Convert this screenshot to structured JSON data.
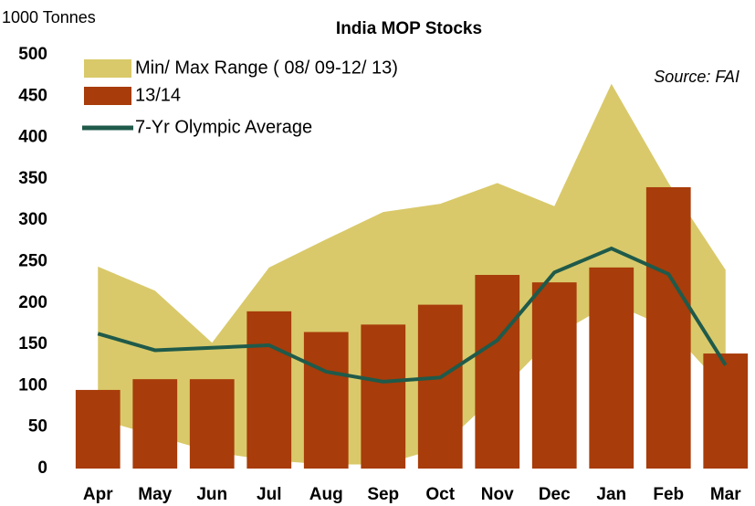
{
  "chart_data": {
    "type": "combo",
    "title": "India  MOP Stocks",
    "y_axis_label": "1000 Tonnes",
    "annotation": "Source: FAI",
    "categories": [
      "Apr",
      "May",
      "Jun",
      "Jul",
      "Aug",
      "Sep",
      "Oct",
      "Nov",
      "Dec",
      "Jan",
      "Feb",
      "Mar"
    ],
    "ylim": [
      0,
      500
    ],
    "yticks": [
      0,
      50,
      100,
      150,
      200,
      250,
      300,
      350,
      400,
      450,
      500
    ],
    "series": [
      {
        "name": "Min/ Max Range ( 08/ 09-12/ 13)",
        "type": "area_range",
        "color": "#d9c96a",
        "low": [
          60,
          40,
          20,
          10,
          5,
          5,
          25,
          90,
          160,
          200,
          170,
          95
        ],
        "high": [
          244,
          215,
          152,
          243,
          277,
          310,
          320,
          345,
          317,
          465,
          345,
          240
        ]
      },
      {
        "name": "13/14",
        "type": "bar",
        "color": "#a83c0a",
        "values": [
          95,
          108,
          108,
          190,
          165,
          174,
          198,
          234,
          225,
          243,
          340,
          139
        ]
      },
      {
        "name": "7-Yr Olympic Average",
        "type": "line",
        "color": "#1f5a4a",
        "values": [
          163,
          143,
          146,
          149,
          117,
          105,
          110,
          155,
          237,
          266,
          235,
          125
        ]
      }
    ]
  }
}
